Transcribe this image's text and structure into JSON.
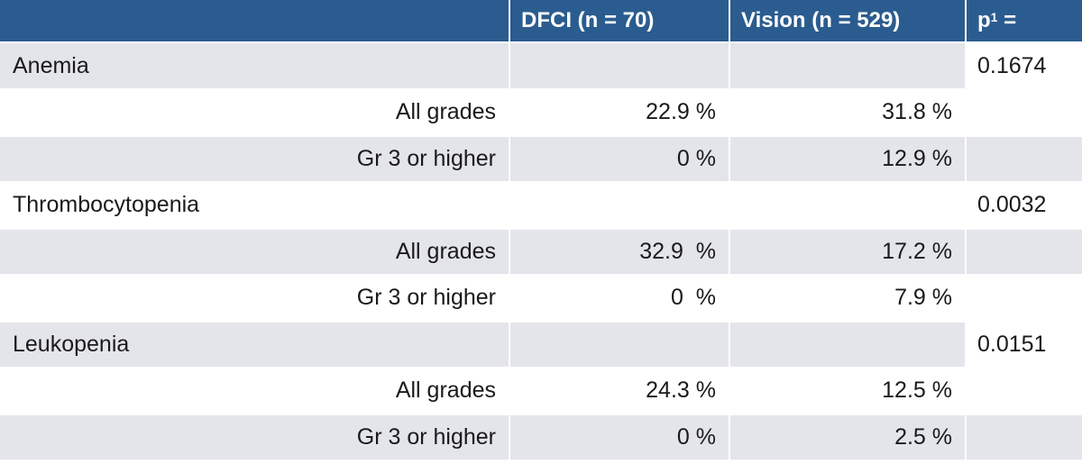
{
  "header": {
    "col_label": "",
    "col_dfci": "DFCI (n = 70)",
    "col_vision": "Vision (n = 529)",
    "col_p": "p",
    "col_p_sup": "1",
    "col_p_suffix": " ="
  },
  "rows": [
    {
      "label": "Anemia",
      "dfci": "",
      "vision": "",
      "p": "0.1674"
    },
    {
      "label": "All grades",
      "dfci": "22.9 %",
      "vision": "31.8 %",
      "p": ""
    },
    {
      "label": "Gr 3 or higher",
      "dfci": "0 %",
      "vision": "12.9 %",
      "p": ""
    },
    {
      "label": "Thrombocytopenia",
      "dfci": "",
      "vision": "",
      "p": "0.0032"
    },
    {
      "label": "All grades",
      "dfci": "32.9  %",
      "vision": "17.2 %",
      "p": ""
    },
    {
      "label": "Gr 3 or higher",
      "dfci": "0  %",
      "vision": "7.9 %",
      "p": ""
    },
    {
      "label": "Leukopenia",
      "dfci": "",
      "vision": "",
      "p": "0.0151"
    },
    {
      "label": "All grades",
      "dfci": "24.3 %",
      "vision": "12.5 %",
      "p": ""
    },
    {
      "label": "Gr 3 or higher",
      "dfci": "0 %",
      "vision": "2.5 %",
      "p": ""
    }
  ],
  "colors": {
    "header_bg": "#2b5c8f",
    "shaded_row": "#e4e5eb",
    "plain_row": "#ffffff"
  }
}
